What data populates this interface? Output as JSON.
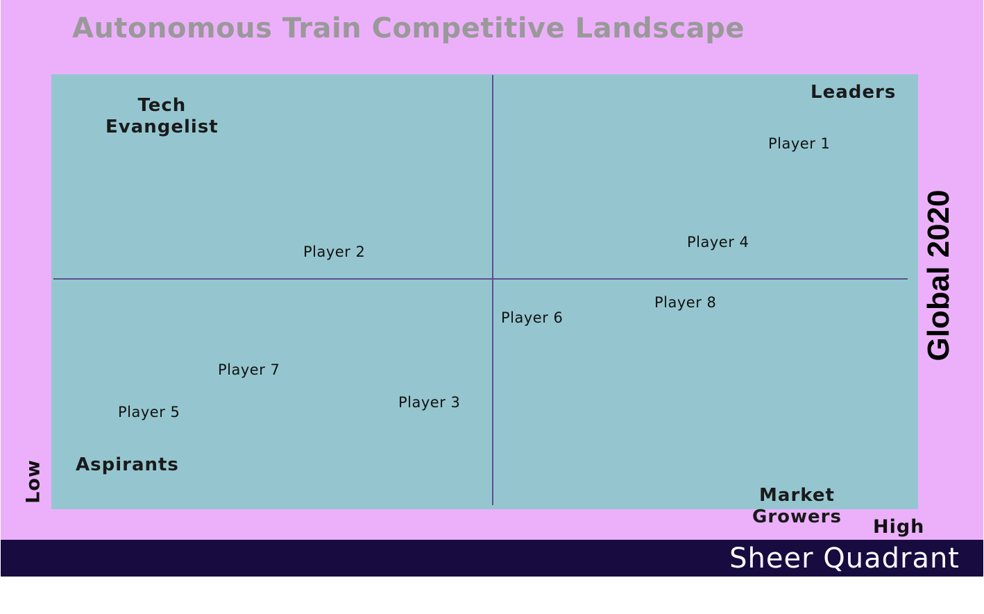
{
  "title": "Autonomous Train Competitive Landscape",
  "quadrants": {
    "top_left": [
      "Tech",
      "Evangelist"
    ],
    "top_right": "Leaders",
    "bottom_left": "Aspirants",
    "bottom_right": [
      "Market",
      "Growers"
    ]
  },
  "axis": {
    "low": "Low",
    "high": "High"
  },
  "side_label": "Global 2020",
  "players": [
    {
      "name": "Player 1"
    },
    {
      "name": "Player 2"
    },
    {
      "name": "Player 3"
    },
    {
      "name": "Player 4"
    },
    {
      "name": "Player 5"
    },
    {
      "name": "Player 6"
    },
    {
      "name": "Player 7"
    },
    {
      "name": "Player 8"
    }
  ],
  "footer": {
    "brand": "Sheer Quadrant"
  },
  "colors": {
    "background": "#ecb0fb",
    "plot": "#95c6d0",
    "divider": "#5a4f8e",
    "footer": "#170b40",
    "title": "#999999"
  }
}
